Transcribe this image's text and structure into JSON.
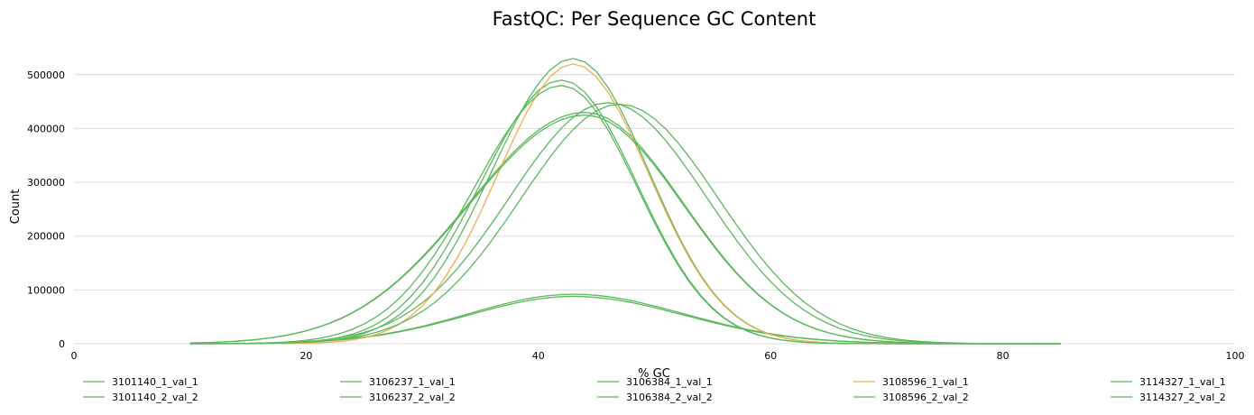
{
  "chart_data": {
    "type": "line",
    "title": "FastQC: Per Sequence GC Content",
    "xlabel": "% GC",
    "ylabel": "Count",
    "xlim": [
      0,
      100
    ],
    "ylim": [
      0,
      560000
    ],
    "x_ticks": [
      "0",
      "20",
      "40",
      "60",
      "80",
      "100"
    ],
    "y_ticks": [
      "0",
      "100000",
      "200000",
      "300000",
      "400000",
      "500000"
    ],
    "grid": "horizontal",
    "legend_position": "bottom",
    "series": [
      {
        "name": "3101140_1_val_1",
        "color": "#5cb85c",
        "peak_x": 43,
        "peak_y": 530000,
        "sigma_left": 7.0,
        "sigma_right": 6.5
      },
      {
        "name": "3101140_2_val_2",
        "color": "#5cb85c",
        "peak_x": 46,
        "peak_y": 448000,
        "sigma_left": 8.5,
        "sigma_right": 8.5
      },
      {
        "name": "3106237_1_val_1",
        "color": "#5cb85c",
        "peak_x": 42,
        "peak_y": 490000,
        "sigma_left": 7.0,
        "sigma_right": 6.5
      },
      {
        "name": "3106237_2_val_2",
        "color": "#5cb85c",
        "peak_x": 44,
        "peak_y": 430000,
        "sigma_left": 10.0,
        "sigma_right": 8.5
      },
      {
        "name": "3106384_1_val_1",
        "color": "#5cb85c",
        "peak_x": 43,
        "peak_y": 92000,
        "sigma_left": 9.0,
        "sigma_right": 9.5
      },
      {
        "name": "3106384_2_val_2",
        "color": "#5cb85c",
        "peak_x": 43,
        "peak_y": 88000,
        "sigma_left": 9.0,
        "sigma_right": 9.5
      },
      {
        "name": "3108596_1_val_1",
        "color": "#f0ad4e",
        "peak_x": 43,
        "peak_y": 520000,
        "sigma_left": 6.5,
        "sigma_right": 6.5
      },
      {
        "name": "3108596_2_val_2",
        "color": "#5cb85c",
        "peak_x": 42,
        "peak_y": 480000,
        "sigma_left": 7.5,
        "sigma_right": 6.5
      },
      {
        "name": "3114327_1_val_1",
        "color": "#5cb85c",
        "peak_x": 47,
        "peak_y": 445000,
        "sigma_left": 8.5,
        "sigma_right": 8.5
      },
      {
        "name": "3114327_2_val_2",
        "color": "#5cb85c",
        "peak_x": 44,
        "peak_y": 425000,
        "sigma_left": 10.0,
        "sigma_right": 8.5
      }
    ]
  }
}
